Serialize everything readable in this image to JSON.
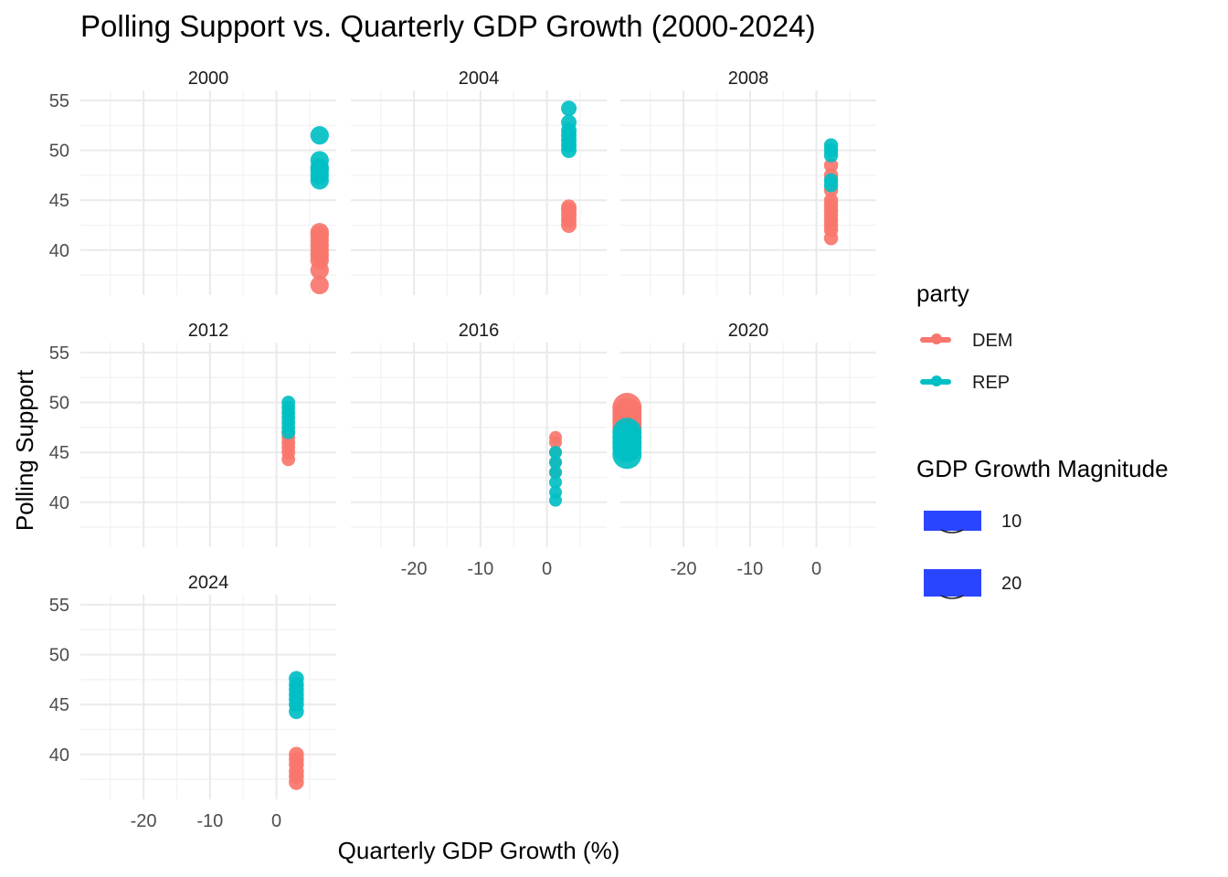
{
  "chart_data": {
    "type": "scatter",
    "title": "Polling Support vs. Quarterly GDP Growth (2000-2024)",
    "xlabel": "Quarterly GDP Growth (%)",
    "ylabel": "Polling Support",
    "xlim": [
      -29.5,
      9
    ],
    "ylim": [
      35.5,
      56
    ],
    "x_ticks": [
      -20,
      -10,
      0
    ],
    "y_ticks": [
      40,
      45,
      50,
      55
    ],
    "grid": true,
    "facet_by": "year",
    "facets": [
      "2000",
      "2004",
      "2008",
      "2012",
      "2016",
      "2020",
      "2024"
    ],
    "colors": {
      "DEM": "#F8766D",
      "REP": "#00BFC4"
    },
    "legend": {
      "placement": "right",
      "color_title": "party",
      "color_entries": [
        "DEM",
        "REP"
      ],
      "size_title": "GDP Growth Magnitude",
      "size_entries": [
        "10",
        "20"
      ],
      "size_key_color": "#2a45ff"
    },
    "panels": [
      {
        "year": "2000",
        "x": 6.5,
        "series": [
          {
            "name": "DEM",
            "y": [
              36.5,
              38.0,
              39.0,
              39.5,
              40.0,
              40.5,
              41.0,
              41.5,
              41.8
            ]
          },
          {
            "name": "REP",
            "y": [
              47.0,
              47.5,
              48.0,
              48.3,
              49.0,
              51.5
            ]
          }
        ]
      },
      {
        "year": "2004",
        "x": 3.3,
        "series": [
          {
            "name": "DEM",
            "y": [
              42.5,
              43.0,
              43.5,
              44.0,
              44.3
            ]
          },
          {
            "name": "REP",
            "y": [
              50.0,
              50.5,
              51.0,
              51.5,
              52.0,
              52.8,
              54.2
            ]
          }
        ]
      },
      {
        "year": "2008",
        "x": 2.2,
        "series": [
          {
            "name": "DEM",
            "y": [
              41.2,
              42.0,
              42.5,
              43.0,
              43.5,
              44.0,
              44.5,
              45.0,
              46.0,
              47.5,
              48.5
            ]
          },
          {
            "name": "REP",
            "y": [
              46.5,
              47.0,
              49.5,
              50.0,
              50.5
            ]
          }
        ]
      },
      {
        "year": "2012",
        "x": 1.8,
        "series": [
          {
            "name": "DEM",
            "y": [
              44.3,
              45.0,
              45.5,
              46.0,
              46.5,
              47.0
            ]
          },
          {
            "name": "REP",
            "y": [
              47.0,
              47.5,
              48.0,
              48.5,
              49.0,
              49.5,
              50.0
            ]
          }
        ]
      },
      {
        "year": "2016",
        "x": 1.3,
        "series": [
          {
            "name": "DEM",
            "y": [
              43.0,
              44.0,
              45.0,
              46.0,
              46.5
            ]
          },
          {
            "name": "REP",
            "y": [
              40.2,
              41.0,
              42.0,
              43.0,
              44.0,
              45.0
            ]
          }
        ]
      },
      {
        "year": "2020",
        "x": -28.5,
        "series": [
          {
            "name": "DEM",
            "y": [
              47.5,
              48.0,
              48.5,
              49.0,
              49.5
            ]
          },
          {
            "name": "REP",
            "y": [
              44.8,
              45.5,
              46.0,
              46.5,
              47.0
            ]
          }
        ]
      },
      {
        "year": "2024",
        "x": 3.0,
        "series": [
          {
            "name": "DEM",
            "y": [
              37.2,
              37.8,
              38.3,
              39.0,
              39.5,
              40.0
            ]
          },
          {
            "name": "REP",
            "y": [
              44.3,
              45.0,
              45.5,
              46.0,
              46.5,
              47.0,
              47.6
            ]
          }
        ]
      }
    ]
  }
}
